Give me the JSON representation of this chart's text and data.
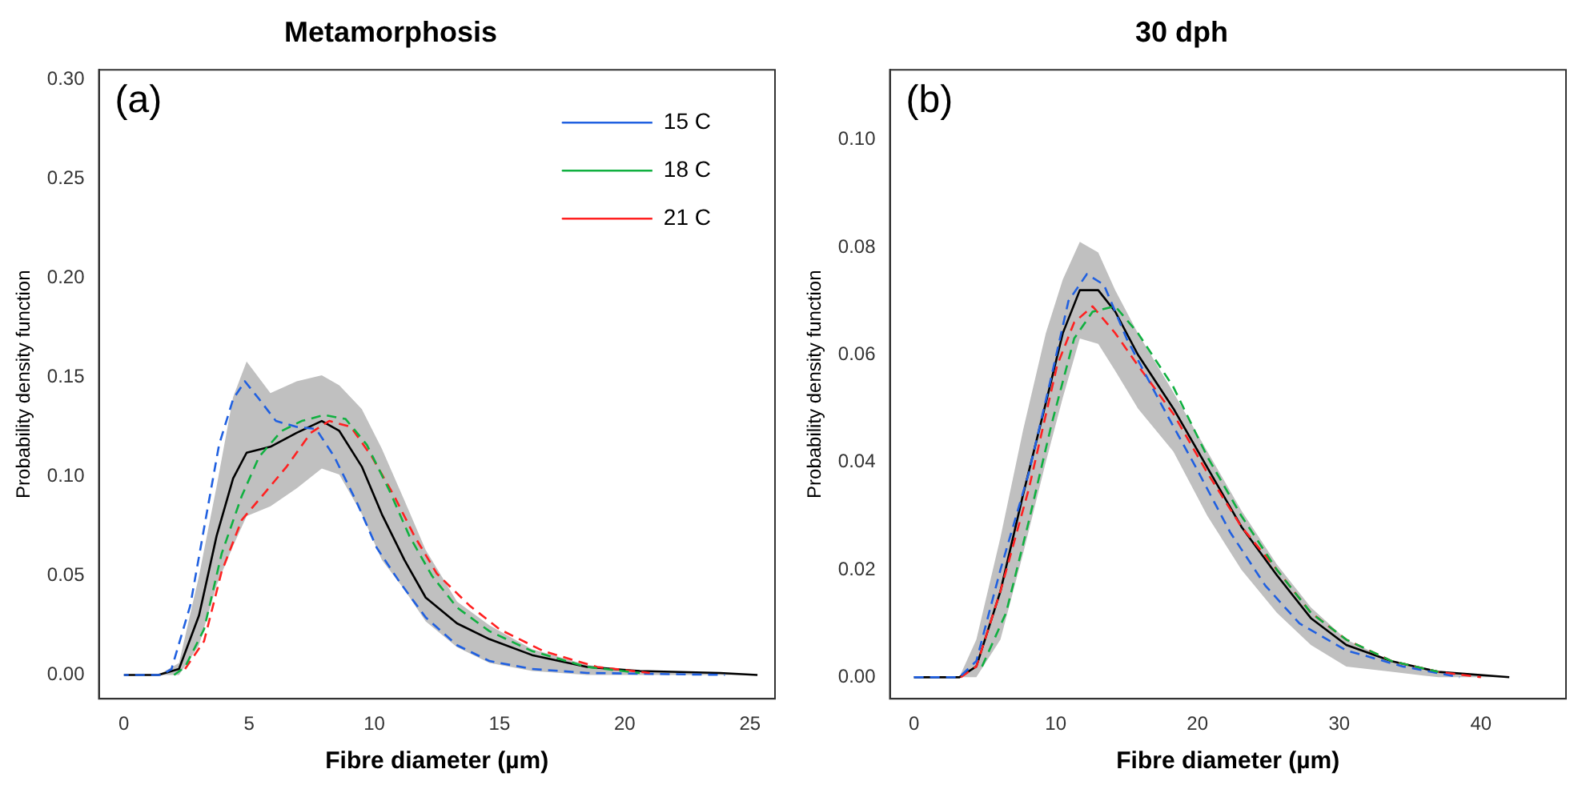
{
  "chart_data": [
    {
      "type": "line",
      "title": "Metamorphosis",
      "xlabel": "Fibre diameter (µm)",
      "ylabel": "Probability density function",
      "annotations": [
        "(a)"
      ],
      "legend": "top right",
      "marker": "none",
      "grid": false,
      "xlim": [
        -1,
        26
      ],
      "xticks": [
        0,
        5,
        10,
        15,
        20,
        25
      ],
      "ylim": [
        -0.012,
        0.305
      ],
      "yticks": [
        {
          "value": 0,
          "label": "0.00"
        },
        {
          "value": 0.05,
          "label": "0.05"
        },
        {
          "value": 0.1,
          "label": "0.10"
        },
        {
          "value": 0.15,
          "label": "0.15"
        },
        {
          "value": 0.2,
          "label": "0.20"
        },
        {
          "value": 0.25,
          "label": "0.25"
        },
        {
          "value": 0.3,
          "label": "0.30"
        }
      ],
      "series": [
        {
          "name": "15 C",
          "color": "#2060e0",
          "line_style": "dashed",
          "x": [
            0,
            1.5,
            1.9,
            2.65,
            3.3,
            3.8,
            4.36,
            4.83,
            5.4,
            6.07,
            6.9,
            7.67,
            8.4,
            9.3,
            10.1,
            11,
            12.05,
            13.3,
            14.6,
            16.3,
            18.5,
            24
          ],
          "values": [
            0,
            0,
            0.003,
            0.035,
            0.081,
            0.116,
            0.139,
            0.148,
            0.139,
            0.128,
            0.125,
            0.124,
            0.11,
            0.087,
            0.064,
            0.047,
            0.029,
            0.015,
            0.007,
            0.003,
            0.001,
            0
          ]
        },
        {
          "name": "18 C",
          "color": "#10b040",
          "line_style": "dashed",
          "x": [
            2,
            2.44,
            3.2,
            3.9,
            4.7,
            5.4,
            6.3,
            7.1,
            8,
            8.85,
            9.7,
            10.6,
            11.4,
            12.3,
            13.3,
            14.6,
            16.3,
            18.5,
            20.6
          ],
          "values": [
            0,
            0.004,
            0.023,
            0.061,
            0.09,
            0.11,
            0.123,
            0.128,
            0.131,
            0.129,
            0.116,
            0.093,
            0.07,
            0.05,
            0.034,
            0.022,
            0.012,
            0.004,
            0.001
          ]
        },
        {
          "name": "21 C",
          "color": "#ff2020",
          "line_style": "dashed",
          "x": [
            2.44,
            3.2,
            3.9,
            4.7,
            5.64,
            6.5,
            7.46,
            8.2,
            9.06,
            9.9,
            10.8,
            11.6,
            12.5,
            13.8,
            15,
            16.75,
            18.9,
            21
          ],
          "values": [
            0.003,
            0.017,
            0.052,
            0.078,
            0.092,
            0.105,
            0.122,
            0.128,
            0.125,
            0.11,
            0.09,
            0.07,
            0.051,
            0.035,
            0.023,
            0.012,
            0.004,
            0.001
          ]
        },
        {
          "color": "#000000",
          "line_style": "solid",
          "x": [
            0,
            1.37,
            2.2,
            3,
            3.7,
            4.36,
            4.9,
            5.85,
            6.9,
            7.9,
            8.6,
            9.5,
            10.3,
            11.2,
            12.05,
            13.3,
            14.6,
            16.3,
            18.5,
            20.6,
            23.8,
            25.3
          ],
          "values": [
            0,
            0,
            0.003,
            0.03,
            0.07,
            0.099,
            0.112,
            0.115,
            0.122,
            0.128,
            0.123,
            0.105,
            0.081,
            0.058,
            0.039,
            0.026,
            0.018,
            0.01,
            0.004,
            0.002,
            0.001,
            0
          ],
          "lower": [
            0,
            0,
            0,
            0.015,
            0.045,
            0.065,
            0.08,
            0.085,
            0.094,
            0.104,
            0.101,
            0.081,
            0.058,
            0.043,
            0.027,
            0.014,
            0.006,
            0.002,
            0,
            0,
            0,
            0
          ],
          "upper": [
            0,
            0,
            0.006,
            0.05,
            0.095,
            0.14,
            0.158,
            0.142,
            0.148,
            0.151,
            0.146,
            0.134,
            0.114,
            0.088,
            0.063,
            0.037,
            0.025,
            0.013,
            0.005,
            0.002,
            0.001,
            0
          ]
        }
      ]
    },
    {
      "type": "line",
      "title": "30 dph",
      "xlabel": "Fibre diameter (µm)",
      "ylabel": "Probability density function",
      "annotations": [
        "(b)"
      ],
      "legend": false,
      "marker": "none",
      "grid": false,
      "xlim": [
        -1.7,
        46
      ],
      "xticks": [
        0,
        10,
        20,
        30,
        40
      ],
      "ylim": [
        -0.004,
        0.113
      ],
      "yticks": [
        {
          "value": 0,
          "label": "0.00"
        },
        {
          "value": 0.02,
          "label": "0.02"
        },
        {
          "value": 0.04,
          "label": "0.04"
        },
        {
          "value": 0.06,
          "label": "0.06"
        },
        {
          "value": 0.08,
          "label": "0.08"
        },
        {
          "value": 0.1,
          "label": "0.10"
        }
      ],
      "series": [
        {
          "color": "#2060e0",
          "line_style": "dashed",
          "x": [
            0,
            3.2,
            4.4,
            6.1,
            8.1,
            9.7,
            10.9,
            12.2,
            13.4,
            15,
            17.4,
            19.9,
            22.3,
            24.8,
            27.2,
            30.5,
            34.5,
            38.5
          ],
          "values": [
            0,
            0,
            0.003,
            0.02,
            0.038,
            0.056,
            0.07,
            0.075,
            0.073,
            0.063,
            0.051,
            0.039,
            0.027,
            0.017,
            0.01,
            0.005,
            0.002,
            0
          ]
        },
        {
          "color": "#10b040",
          "line_style": "dashed",
          "x": [
            4.8,
            6.5,
            8.1,
            9.7,
            11.3,
            12.6,
            14.2,
            15.8,
            18.3,
            20.7,
            23.1,
            25.6,
            28,
            30.5,
            33.7,
            37
          ],
          "values": [
            0.002,
            0.012,
            0.029,
            0.047,
            0.063,
            0.068,
            0.069,
            0.064,
            0.054,
            0.041,
            0.03,
            0.02,
            0.012,
            0.007,
            0.003,
            0.001
          ]
        },
        {
          "color": "#ff2020",
          "line_style": "dashed",
          "x": [
            3.3,
            4.4,
            6.1,
            8.1,
            10.1,
            11.3,
            12.6,
            14.2,
            15.8,
            18.3,
            20.7,
            23.1,
            25.6,
            28,
            30.5,
            33.7,
            37,
            40
          ],
          "values": [
            0,
            0.002,
            0.016,
            0.035,
            0.058,
            0.066,
            0.069,
            0.064,
            0.058,
            0.049,
            0.038,
            0.028,
            0.02,
            0.012,
            0.007,
            0.003,
            0.001,
            0
          ]
        },
        {
          "color": "#000000",
          "line_style": "solid",
          "x": [
            0,
            3.2,
            4.4,
            6.1,
            7.7,
            9.3,
            10.5,
            11.7,
            13,
            14.2,
            15.8,
            18.3,
            20.7,
            23.1,
            25.6,
            28,
            30.5,
            33.7,
            37,
            42
          ],
          "values": [
            0,
            0,
            0.002,
            0.016,
            0.034,
            0.051,
            0.064,
            0.072,
            0.072,
            0.068,
            0.06,
            0.05,
            0.039,
            0.028,
            0.019,
            0.011,
            0.006,
            0.003,
            0.001,
            0
          ],
          "lower": [
            0,
            0,
            0,
            0.007,
            0.023,
            0.04,
            0.052,
            0.063,
            0.062,
            0.057,
            0.05,
            0.042,
            0.03,
            0.02,
            0.012,
            0.006,
            0.002,
            0.001,
            0,
            0
          ],
          "upper": [
            0,
            0,
            0.007,
            0.026,
            0.046,
            0.064,
            0.074,
            0.081,
            0.079,
            0.072,
            0.064,
            0.053,
            0.042,
            0.031,
            0.021,
            0.013,
            0.007,
            0.003,
            0.001,
            0
          ]
        }
      ]
    }
  ]
}
